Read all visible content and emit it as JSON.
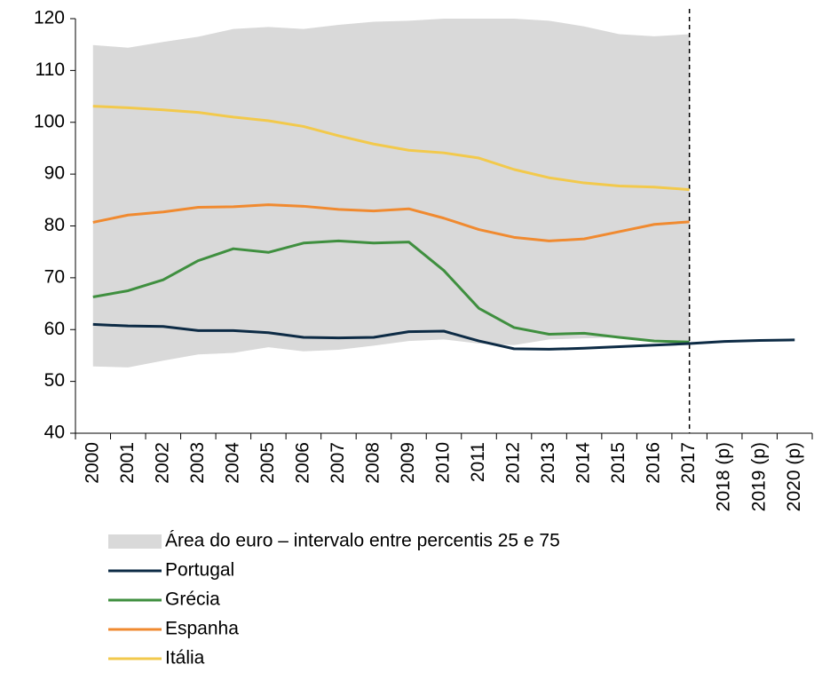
{
  "chart_data": {
    "type": "line",
    "categories": [
      "2000",
      "2001",
      "2002",
      "2003",
      "2004",
      "2005",
      "2006",
      "2007",
      "2008",
      "2009",
      "2010",
      "2011",
      "2012",
      "2013",
      "2014",
      "2015",
      "2016",
      "2017",
      "2018 (p)",
      "2019 (p)",
      "2020 (p)"
    ],
    "band": {
      "name": "Área do euro – intervalo entre percentis 25 e 75",
      "color": "#d9d9d9",
      "upper": [
        114.9,
        114.4,
        115.5,
        116.5,
        118.0,
        118.4,
        118.0,
        118.8,
        119.4,
        119.6,
        120.0,
        120.0,
        120.0,
        119.6,
        118.5,
        117.0,
        116.6,
        117.0,
        null,
        null,
        null
      ],
      "lower": [
        52.9,
        52.7,
        54.0,
        55.2,
        55.5,
        56.6,
        55.8,
        56.1,
        56.9,
        57.8,
        58.1,
        57.3,
        57.0,
        58.1,
        58.3,
        58.5,
        58.0,
        57.6,
        null,
        null,
        null
      ]
    },
    "series": [
      {
        "name": "Portugal",
        "color": "#0d2b45",
        "values": [
          61.0,
          60.7,
          60.6,
          59.8,
          59.8,
          59.4,
          58.5,
          58.4,
          58.5,
          59.6,
          59.7,
          57.8,
          56.3,
          56.2,
          56.4,
          56.7,
          57.0,
          57.3,
          57.7,
          57.9,
          58.0
        ]
      },
      {
        "name": "Grécia",
        "color": "#3f8f3f",
        "values": [
          66.3,
          67.5,
          69.6,
          73.3,
          75.6,
          74.9,
          76.7,
          77.1,
          76.7,
          76.9,
          71.4,
          64.1,
          60.4,
          59.1,
          59.3,
          58.5,
          57.8,
          57.6,
          null,
          null,
          null
        ]
      },
      {
        "name": "Espanha",
        "color": "#f08a30",
        "values": [
          80.7,
          82.1,
          82.7,
          83.6,
          83.7,
          84.1,
          83.8,
          83.2,
          82.9,
          83.3,
          81.5,
          79.3,
          77.8,
          77.1,
          77.5,
          78.9,
          80.3,
          80.8,
          null,
          null,
          null
        ]
      },
      {
        "name": "Itália",
        "color": "#f2c94c",
        "values": [
          103.1,
          102.8,
          102.4,
          101.9,
          101.0,
          100.3,
          99.2,
          97.4,
          95.8,
          94.6,
          94.1,
          93.1,
          90.9,
          89.3,
          88.3,
          87.7,
          87.5,
          87.0,
          null,
          null,
          null
        ]
      }
    ],
    "vline_at": "2017",
    "ylim": [
      40,
      120
    ],
    "yticks": [
      40,
      50,
      60,
      70,
      80,
      90,
      100,
      110,
      120
    ],
    "grid": false
  }
}
